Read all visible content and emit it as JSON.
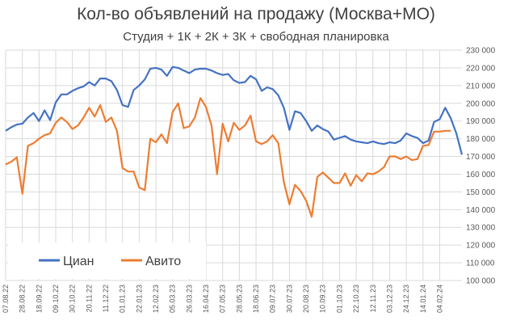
{
  "chart_data": {
    "type": "line",
    "title": "Кол-во объявлений на продажу (Москва+МО)",
    "subtitle": "Студия + 1К + 2К + 3К + свободная планировка",
    "ylim": [
      100000,
      230000
    ],
    "y_ticks": [
      "100 000",
      "110 000",
      "120 000",
      "130 000",
      "140 000",
      "150 000",
      "160 000",
      "170 000",
      "180 000",
      "190 000",
      "200 000",
      "210 000",
      "220 000",
      "230 000"
    ],
    "y_tick_values": [
      100000,
      110000,
      120000,
      130000,
      140000,
      150000,
      160000,
      170000,
      180000,
      190000,
      200000,
      210000,
      220000,
      230000
    ],
    "grid": true,
    "legend_position": "bottom-left",
    "x_tick_labels": [
      "07.08.22",
      "28.08.22",
      "18.09.22",
      "09.10.22",
      "30.10.22",
      "20.11.22",
      "11.12.22",
      "01.01.23",
      "22.01.23",
      "12.02.23",
      "05.03.23",
      "26.03.23",
      "16.04.23",
      "07.05.23",
      "28.05.23",
      "18.06.23",
      "09.07.23",
      "30.07.23",
      "20.08.23",
      "10.09.23",
      "01.10.23",
      "22.10.23",
      "12.11.23",
      "03.12.23",
      "24.12.23",
      "14.01.24",
      "04.02.24"
    ],
    "series": [
      {
        "name": "Циан",
        "color": "#4472C4",
        "values": [
          184500,
          186500,
          188000,
          188500,
          192000,
          194500,
          190000,
          196000,
          190500,
          200500,
          205000,
          205000,
          207000,
          208500,
          209500,
          212000,
          210000,
          214000,
          214000,
          212500,
          207500,
          199000,
          198000,
          207500,
          210000,
          213500,
          219500,
          220000,
          219000,
          215500,
          220500,
          220000,
          218500,
          217000,
          219000,
          219500,
          219500,
          218500,
          217000,
          216000,
          216500,
          213000,
          211500,
          212000,
          215500,
          213500,
          207000,
          209000,
          208000,
          204500,
          197500,
          185000,
          195500,
          194500,
          190000,
          184500,
          187500,
          185500,
          184000,
          179500,
          180500,
          181500,
          179500,
          178500,
          178000,
          177500,
          178500,
          177500,
          177000,
          178000,
          177500,
          179000,
          183000,
          181500,
          180500,
          177500,
          179000,
          189500,
          191000,
          197500,
          191500,
          183000,
          171000
        ],
        "x_first": "07.08.22"
      },
      {
        "name": "Авито",
        "color": "#ED7D31",
        "values": [
          165500,
          167000,
          169500,
          149000,
          176000,
          177500,
          180000,
          182000,
          183000,
          189000,
          192000,
          189500,
          185500,
          187500,
          192000,
          197500,
          192500,
          199000,
          189500,
          192000,
          184500,
          163500,
          161500,
          161500,
          152500,
          151000,
          180000,
          178000,
          182500,
          177500,
          195000,
          200000,
          186000,
          187000,
          192000,
          203000,
          198000,
          187500,
          160000,
          188500,
          178500,
          189000,
          185000,
          187500,
          193000,
          178500,
          177000,
          178500,
          182000,
          177500,
          155500,
          143000,
          154000,
          150500,
          145000,
          136000,
          158500,
          161000,
          158000,
          155000,
          155000,
          160500,
          153500,
          159500,
          156000,
          160500,
          160000,
          161500,
          164000,
          170000,
          170000,
          168500,
          170000,
          168000,
          168500,
          176000,
          176500,
          184000,
          184000,
          184500,
          184500
        ]
      }
    ]
  }
}
